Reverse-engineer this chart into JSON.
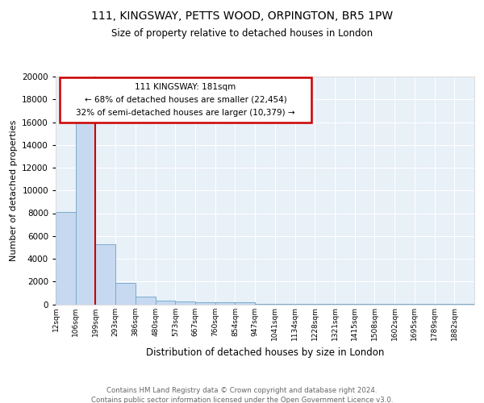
{
  "title1": "111, KINGSWAY, PETTS WOOD, ORPINGTON, BR5 1PW",
  "title2": "Size of property relative to detached houses in London",
  "xlabel": "Distribution of detached houses by size in London",
  "ylabel": "Number of detached properties",
  "bin_labels": [
    "12sqm",
    "106sqm",
    "199sqm",
    "293sqm",
    "386sqm",
    "480sqm",
    "573sqm",
    "667sqm",
    "760sqm",
    "854sqm",
    "947sqm",
    "1041sqm",
    "1134sqm",
    "1228sqm",
    "1321sqm",
    "1415sqm",
    "1508sqm",
    "1602sqm",
    "1695sqm",
    "1789sqm",
    "1882sqm"
  ],
  "bar_values": [
    8100,
    16500,
    5300,
    1850,
    700,
    350,
    270,
    210,
    190,
    160,
    55,
    40,
    40,
    35,
    30,
    25,
    20,
    20,
    15,
    15,
    10
  ],
  "bar_color": "#c6d9f0",
  "bar_edge_color": "#7aadcc",
  "bg_color": "#e8f0f8",
  "red_line_x": 2,
  "annotation_text": "111 KINGSWAY: 181sqm\n← 68% of detached houses are smaller (22,454)\n32% of semi-detached houses are larger (10,379) →",
  "annotation_box_color": "#ffffff",
  "annotation_border_color": "#cc0000",
  "footer1": "Contains HM Land Registry data © Crown copyright and database right 2024.",
  "footer2": "Contains public sector information licensed under the Open Government Licence v3.0.",
  "ylim": [
    0,
    20000
  ],
  "yticks": [
    0,
    2000,
    4000,
    6000,
    8000,
    10000,
    12000,
    14000,
    16000,
    18000,
    20000
  ]
}
